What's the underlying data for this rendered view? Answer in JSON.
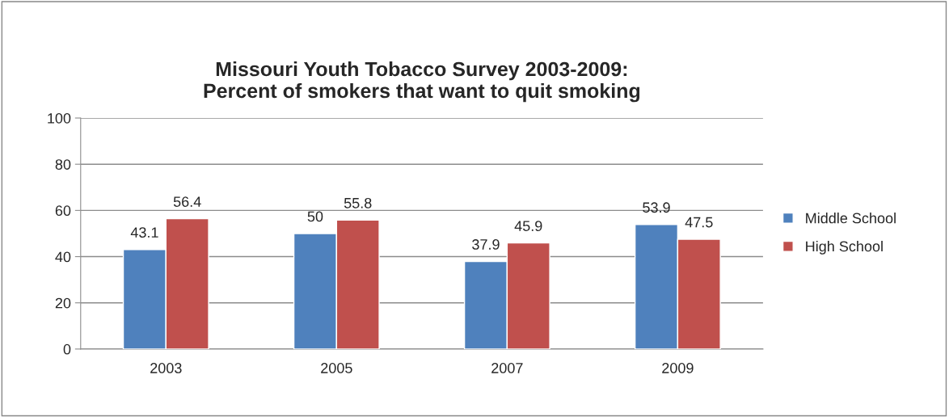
{
  "chart_data": {
    "type": "bar",
    "title": "Missouri Youth Tobacco Survey 2003-2009:\nPercent of smokers that want to quit smoking",
    "categories": [
      "2003",
      "2005",
      "2007",
      "2009"
    ],
    "series": [
      {
        "name": "Middle School",
        "color": "#4f81bd",
        "values": [
          43.1,
          50,
          37.9,
          53.9
        ]
      },
      {
        "name": "High School",
        "color": "#c0504d",
        "values": [
          56.4,
          55.8,
          45.9,
          47.5
        ]
      }
    ],
    "ylim": [
      0,
      100
    ],
    "yticks": [
      0,
      20,
      40,
      60,
      80,
      100
    ],
    "grid": "y",
    "legend": "right",
    "data_labels": true
  }
}
